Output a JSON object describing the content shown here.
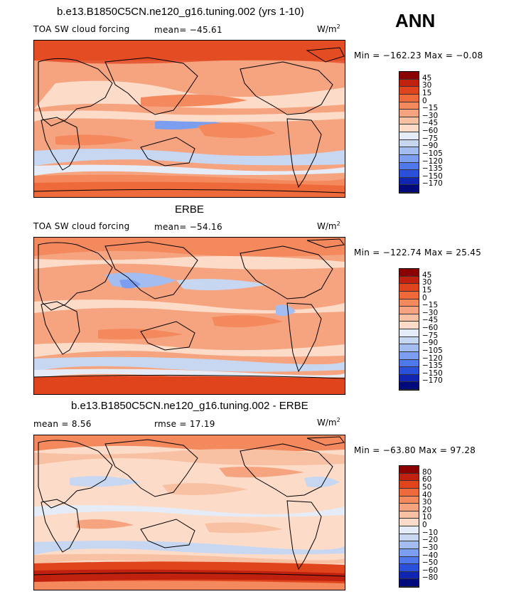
{
  "season": "ANN",
  "units_base": "W/m",
  "units_exp": "2",
  "panels": [
    {
      "title": "b.e13.B1850C5CN.ne120_g16.tuning.002 (yrs 1-10)",
      "left_label": "TOA SW cloud forcing",
      "stat1": "mean= −45.61",
      "stat2": "",
      "range": "Min = −162.23 Max =  −0.08",
      "levels": [
        "45",
        "30",
        "15",
        "0",
        "−15",
        "−30",
        "−45",
        "−60",
        "−75",
        "−90",
        "−105",
        "−120",
        "−135",
        "−150",
        "−170"
      ],
      "colors": [
        "#8b0000",
        "#c0210f",
        "#e0441d",
        "#ef6a3a",
        "#f3895c",
        "#f6a47f",
        "#f9c1a4",
        "#fcdcc8",
        "#e5ecf7",
        "#c7d7f2",
        "#a3bdf0",
        "#7b9ef0",
        "#4f78ea",
        "#2a4fd8",
        "#1026b3",
        "#000a7a"
      ]
    },
    {
      "title": "ERBE",
      "left_label": "TOA SW cloud forcing",
      "stat1": "mean= −54.16",
      "stat2": "",
      "range": "Min = −122.74 Max =  25.45",
      "levels": [
        "45",
        "30",
        "15",
        "0",
        "−15",
        "−30",
        "−45",
        "−60",
        "−75",
        "−90",
        "−105",
        "−120",
        "−135",
        "−150",
        "−170"
      ],
      "colors": [
        "#8b0000",
        "#c0210f",
        "#e0441d",
        "#ef6a3a",
        "#f3895c",
        "#f6a47f",
        "#f9c1a4",
        "#fcdcc8",
        "#e5ecf7",
        "#c7d7f2",
        "#a3bdf0",
        "#7b9ef0",
        "#4f78ea",
        "#2a4fd8",
        "#1026b3",
        "#000a7a"
      ]
    },
    {
      "title": "b.e13.B1850C5CN.ne120_g16.tuning.002 - ERBE",
      "left_label": "mean =    8.56",
      "stat1": "",
      "stat2": "rmse =   17.19",
      "range": "Min = −63.80 Max =  97.28",
      "levels": [
        "80",
        "60",
        "50",
        "40",
        "30",
        "20",
        "10",
        "0",
        "−10",
        "−20",
        "−30",
        "−40",
        "−50",
        "−60",
        "−80"
      ],
      "colors": [
        "#8b0000",
        "#c0210f",
        "#e0441d",
        "#ef6a3a",
        "#f3895c",
        "#f6a47f",
        "#f9c1a4",
        "#fcdcc8",
        "#e5ecf7",
        "#c7d7f2",
        "#a3bdf0",
        "#7b9ef0",
        "#4f78ea",
        "#2a4fd8",
        "#1026b3",
        "#000a7a"
      ]
    }
  ]
}
